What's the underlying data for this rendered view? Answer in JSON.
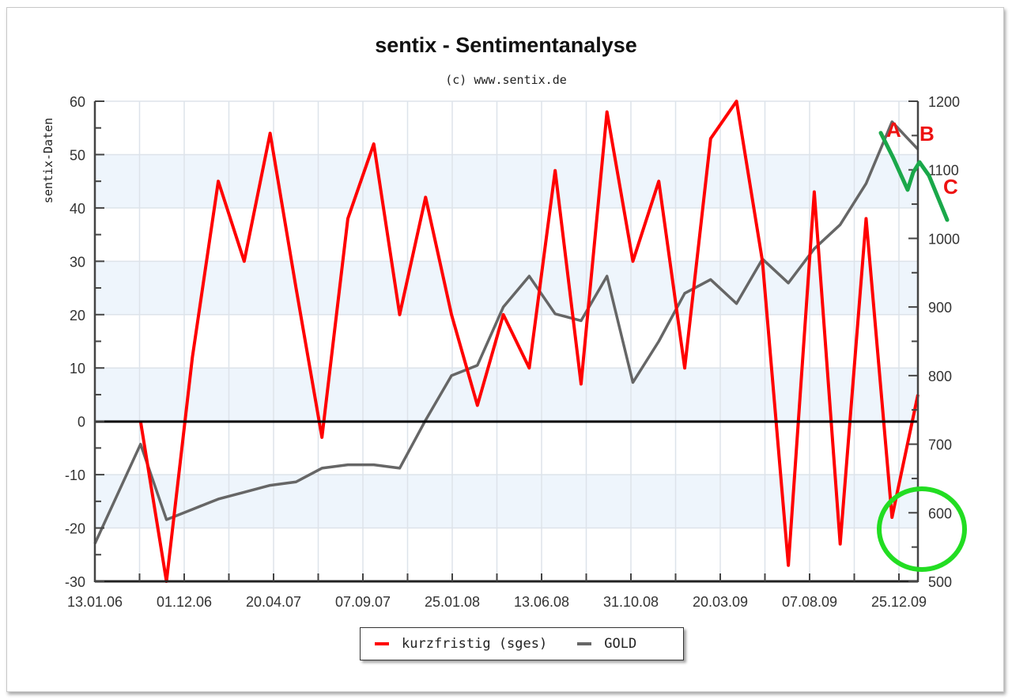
{
  "title": "sentix - Sentimentanalyse",
  "subtitle": "(c) www.sentix.de",
  "colors": {
    "short_term": "#ff0000",
    "gold": "#666666",
    "band": "#eef5fc",
    "grid": "#dde3ea",
    "annotation_green": "#1aa84a",
    "circle_green": "#22dd22",
    "annotation_text": "#ee1111"
  },
  "legend": {
    "items": [
      {
        "label": "kurzfristig (sges)",
        "color": "#ff0000"
      },
      {
        "label": "GOLD",
        "color": "#666666"
      }
    ]
  },
  "annotations": {
    "labels": [
      {
        "text": "A"
      },
      {
        "text": "B"
      },
      {
        "text": "C"
      }
    ],
    "circle": "green circle highlighting latest low of sentiment"
  },
  "chart_data": {
    "type": "line",
    "title": "sentix - Sentimentanalyse",
    "subtitle": "(c) www.sentix.de",
    "xlabel": "",
    "ylabel": "sentix-Daten",
    "y2label": "",
    "ylim": [
      -30,
      60
    ],
    "y2lim": [
      500,
      1200
    ],
    "yticks": [
      60,
      50,
      40,
      30,
      20,
      10,
      0,
      -10,
      -20,
      -30
    ],
    "y2ticks": [
      1200,
      1100,
      1000,
      900,
      800,
      700,
      600,
      500
    ],
    "xtick_labels": [
      "13.01.06",
      "01.12.06",
      "20.04.07",
      "07.09.07",
      "25.01.08",
      "13.06.08",
      "31.10.08",
      "20.03.09",
      "07.08.09",
      "25.12.09"
    ],
    "grid": true,
    "legend_position": "bottom",
    "x": [
      "13.01.06",
      "10.03.06",
      "07.05.06",
      "04.07.06",
      "01.09.06",
      "15.10.06",
      "01.12.06",
      "15.01.07",
      "01.03.07",
      "20.04.07",
      "05.06.07",
      "20.07.07",
      "07.09.07",
      "20.10.07",
      "05.12.07",
      "25.01.08",
      "10.03.08",
      "25.04.08",
      "13.06.08",
      "30.07.08",
      "15.09.08",
      "31.10.08",
      "15.12.08",
      "01.02.09",
      "20.03.09",
      "05.05.09",
      "20.06.09",
      "07.08.09",
      "20.09.09",
      "05.11.09",
      "25.12.09",
      "15.01.10"
    ],
    "series": [
      {
        "name": "kurzfristig (sges)",
        "axis": "left",
        "values": [
          null,
          0,
          -30,
          12,
          45,
          30,
          54,
          25,
          -3,
          38,
          52,
          20,
          42,
          20,
          3,
          20,
          10,
          47,
          7,
          58,
          30,
          45,
          10,
          53,
          60,
          30,
          -27,
          43,
          -23,
          38,
          -18,
          5
        ]
      },
      {
        "name": "GOLD",
        "axis": "right",
        "values": [
          555,
          700,
          590,
          605,
          620,
          630,
          640,
          645,
          665,
          670,
          670,
          665,
          735,
          800,
          815,
          900,
          945,
          890,
          880,
          945,
          790,
          850,
          920,
          940,
          905,
          970,
          935,
          985,
          1020,
          1080,
          1170,
          1130
        ]
      }
    ],
    "annotations": [
      "A",
      "B",
      "C",
      "green ABC correction line on gold",
      "green circle at latest sentiment low"
    ]
  }
}
